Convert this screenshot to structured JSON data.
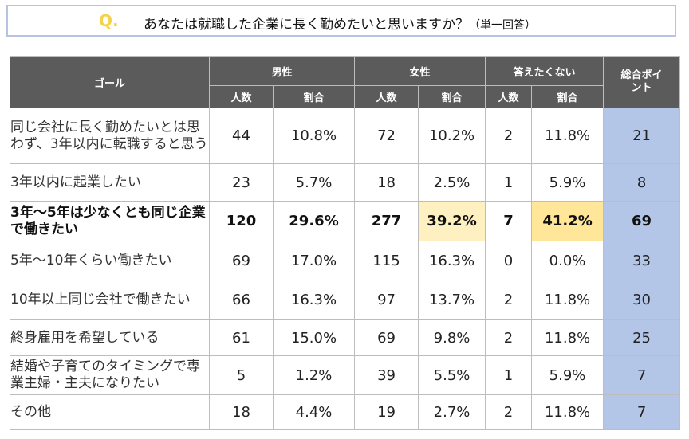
{
  "question": {
    "mark": "Q.",
    "text": "あなたは就職した企業に長く勤めたいと思いますか？",
    "note": "（単一回答）"
  },
  "table": {
    "goal_header": "ゴール",
    "groups": [
      "男性",
      "女性",
      "答えたくない"
    ],
    "points_header": "総合ポイント",
    "subheaders": [
      "人数",
      "割合",
      "人数",
      "割合",
      "人数",
      "割合"
    ],
    "rows": [
      {
        "label": "同じ会社に長く勤めたいとは思わず、3年以内に転職すると思う",
        "values": [
          "44",
          "10.8%",
          "72",
          "10.2%",
          "2",
          "11.8%"
        ],
        "points": "21"
      },
      {
        "label": "3年以内に起業したい",
        "values": [
          "23",
          "5.7%",
          "18",
          "2.5%",
          "1",
          "5.9%"
        ],
        "points": "8"
      },
      {
        "label": "3年～5年は少なくとも同じ企業で働きたい",
        "values": [
          "120",
          "29.6%",
          "277",
          "39.2%",
          "7",
          "41.2%"
        ],
        "points": "69"
      },
      {
        "label": "5年～10年くらい働きたい",
        "values": [
          "69",
          "17.0%",
          "115",
          "16.3%",
          "0",
          "0.0%"
        ],
        "points": "33"
      },
      {
        "label": "10年以上同じ会社で働きたい",
        "values": [
          "66",
          "16.3%",
          "97",
          "13.7%",
          "2",
          "11.8%"
        ],
        "points": "30"
      },
      {
        "label": "終身雇用を希望している",
        "values": [
          "61",
          "15.0%",
          "69",
          "9.8%",
          "2",
          "11.8%"
        ],
        "points": "25"
      },
      {
        "label": "結婚や子育てのタイミングで専業主婦・主夫になりたい",
        "values": [
          "5",
          "1.2%",
          "39",
          "5.5%",
          "1",
          "5.9%"
        ],
        "points": "7"
      },
      {
        "label": "その他",
        "values": [
          "18",
          "4.4%",
          "19",
          "2.7%",
          "2",
          "11.8%"
        ],
        "points": "7"
      }
    ]
  },
  "colors": {
    "header_bg": "#5b5b5b",
    "points_bg": "#b4c6e7",
    "highlight_light": "#fff0c2",
    "highlight_strong": "#ffe699",
    "question_mark": "#f6d24a"
  }
}
